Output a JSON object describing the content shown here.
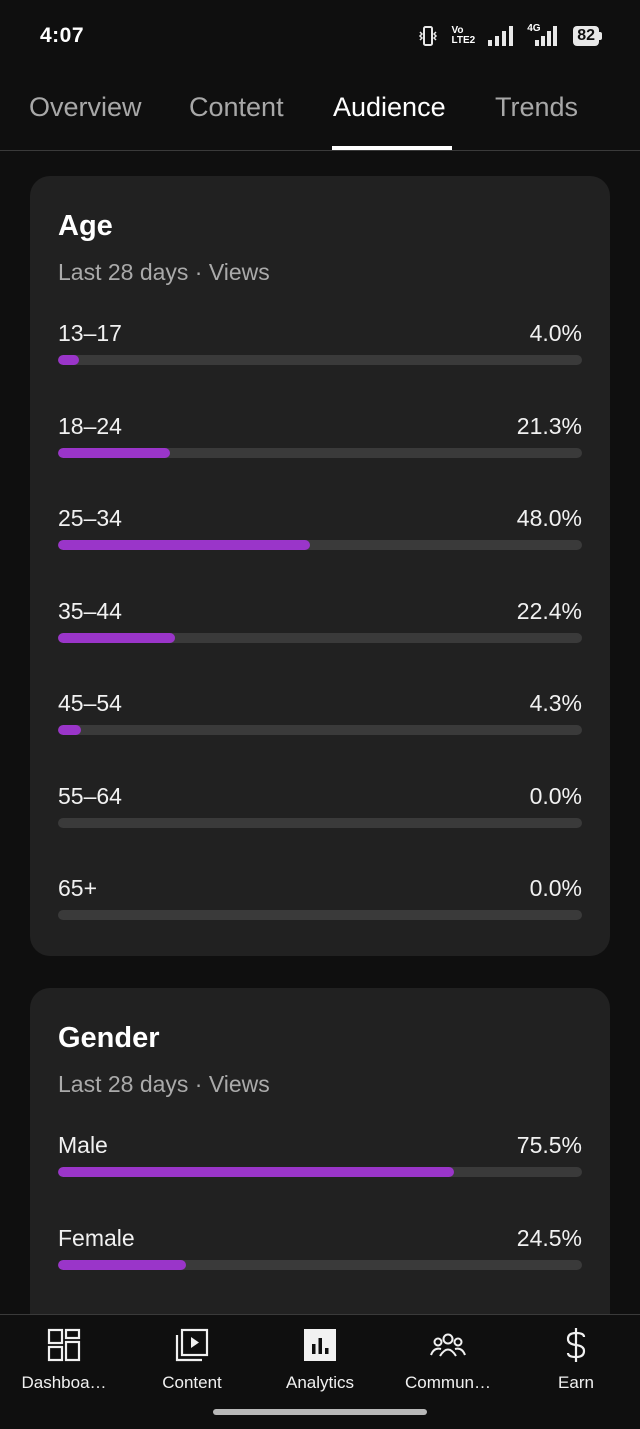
{
  "status_bar": {
    "time": "4:07",
    "volte_line1": "Vo",
    "volte_line2": "LTE2",
    "network": "4G",
    "battery": "82"
  },
  "tabs": [
    {
      "label": "Overview",
      "active": false
    },
    {
      "label": "Content",
      "active": false
    },
    {
      "label": "Audience",
      "active": true
    },
    {
      "label": "Trends",
      "active": false
    }
  ],
  "age_card": {
    "title": "Age",
    "subtitle": "Last 28 days · Views",
    "rows": [
      {
        "label": "13–17",
        "value": "4.0%",
        "fraction": 0.04
      },
      {
        "label": "18–24",
        "value": "21.3%",
        "fraction": 0.213
      },
      {
        "label": "25–34",
        "value": "48.0%",
        "fraction": 0.48
      },
      {
        "label": "35–44",
        "value": "22.4%",
        "fraction": 0.224
      },
      {
        "label": "45–54",
        "value": "4.3%",
        "fraction": 0.043
      },
      {
        "label": "55–64",
        "value": "0.0%",
        "fraction": 0.0
      },
      {
        "label": "65+",
        "value": "0.0%",
        "fraction": 0.0
      }
    ]
  },
  "gender_card": {
    "title": "Gender",
    "subtitle": "Last 28 days · Views",
    "rows": [
      {
        "label": "Male",
        "value": "75.5%",
        "fraction": 0.755
      },
      {
        "label": "Female",
        "value": "24.5%",
        "fraction": 0.245
      }
    ]
  },
  "colors": {
    "accent": "#9a35c9",
    "track": "#3a3a3a",
    "card": "#212121",
    "background": "#0f0f0f"
  },
  "bottom_nav": [
    {
      "label": "Dashboa…",
      "icon": "dashboard-icon"
    },
    {
      "label": "Content",
      "icon": "content-icon"
    },
    {
      "label": "Analytics",
      "icon": "analytics-icon",
      "active": true
    },
    {
      "label": "Commun…",
      "icon": "community-icon"
    },
    {
      "label": "Earn",
      "icon": "dollar-icon"
    }
  ]
}
